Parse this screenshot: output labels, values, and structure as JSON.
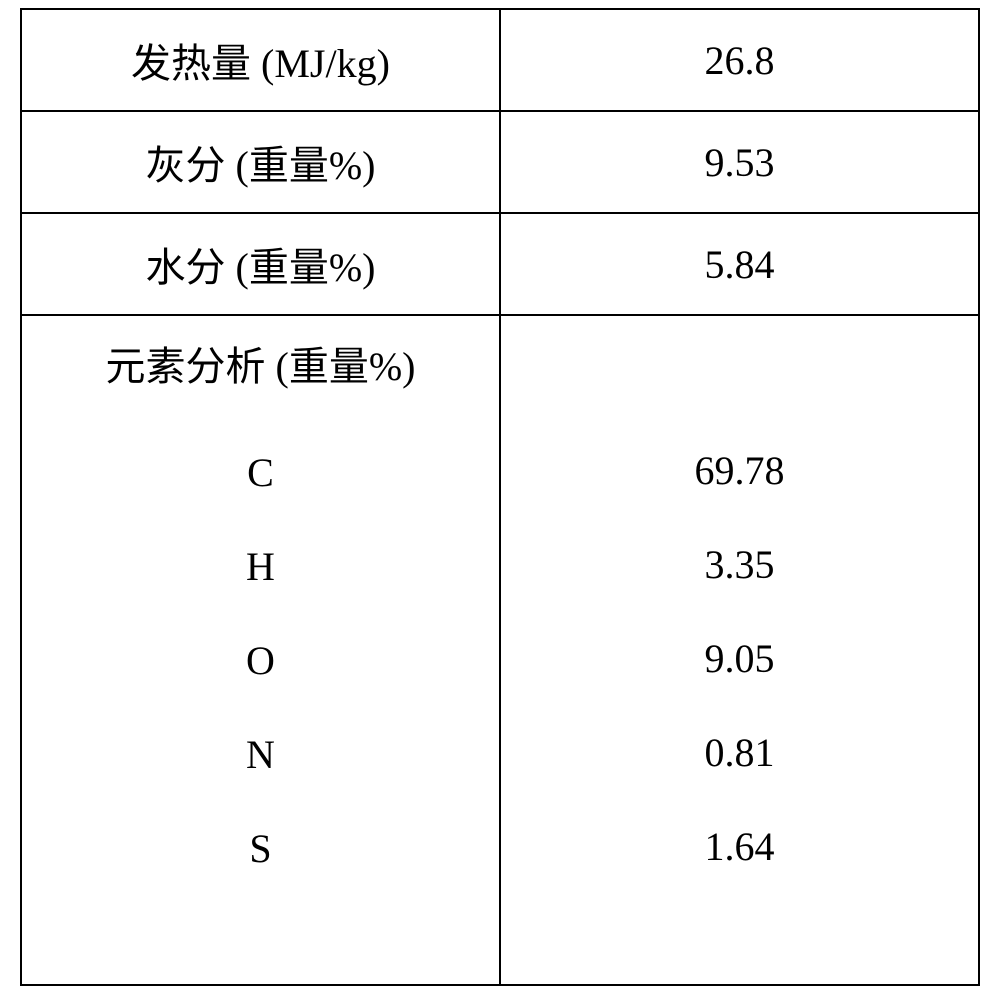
{
  "table": {
    "rows": [
      {
        "label": "发热量 (MJ/kg)",
        "value": "26.8"
      },
      {
        "label": "灰分 (重量%)",
        "value": "9.53"
      },
      {
        "label": "水分 (重量%)",
        "value": "5.84"
      }
    ],
    "elemental": {
      "header": "元素分析 (重量%)",
      "items": [
        {
          "sym": "C",
          "val": "69.78"
        },
        {
          "sym": "H",
          "val": "3.35"
        },
        {
          "sym": "O",
          "val": "9.05"
        },
        {
          "sym": "N",
          "val": "0.81"
        },
        {
          "sym": "S",
          "val": "1.64"
        }
      ]
    },
    "border_color": "#000000",
    "background_color": "#ffffff",
    "text_color": "#000000",
    "font_size_pt": 30,
    "columns": [
      "label",
      "value"
    ],
    "col_widths_pct": [
      50,
      50
    ]
  }
}
